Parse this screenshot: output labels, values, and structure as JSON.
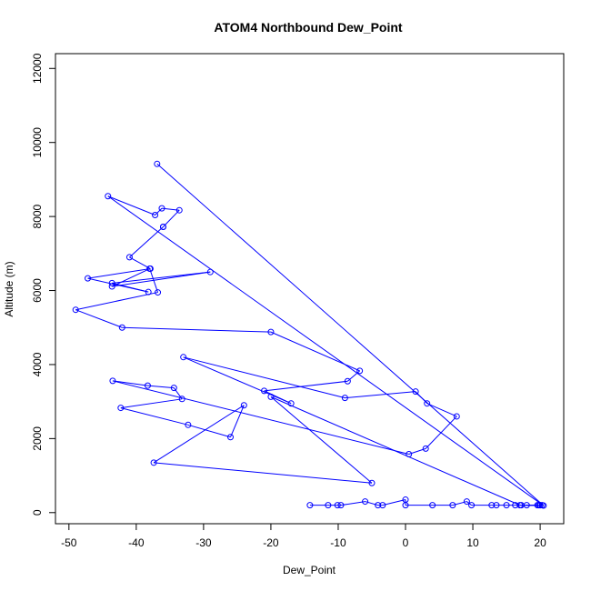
{
  "chart_data": {
    "type": "line",
    "title": "ATOM4 Northbound Dew_Point",
    "xlabel": "Dew_Point",
    "ylabel": "Altitude (m)",
    "xlim": [
      -52,
      23.5
    ],
    "ylim": [
      -300,
      12400
    ],
    "xticks": [
      -50,
      -40,
      -30,
      -20,
      -10,
      0,
      10,
      20
    ],
    "yticks": [
      0,
      2000,
      4000,
      6000,
      8000,
      10000,
      12000
    ],
    "color": "#0000FF",
    "grid": false,
    "legend": "none",
    "x": [
      -36.9,
      20.5,
      -44.2,
      -37.2,
      -36.2,
      -33.6,
      -36.0,
      -36.0,
      -41.0,
      -37.9,
      -47.2,
      -38.2,
      -43.6,
      -29.0,
      -43.6,
      -38.0,
      -36.8,
      -49.0,
      -42.1,
      -20.0,
      -6.8,
      -8.6,
      -21.0,
      -17.0,
      -33.0,
      -9.0,
      1.5,
      3.2,
      7.6,
      3.0,
      0.5,
      -43.5,
      -38.3,
      -34.4,
      -33.2,
      -42.3,
      -32.3,
      -26.0,
      -24.0,
      -37.4,
      -5.0,
      -20.0,
      17.0,
      20.0,
      18.0,
      19.8,
      20.3,
      17.2,
      19.6,
      20.0,
      16.3,
      15.0,
      13.5,
      12.8,
      9.8,
      9.1,
      7.0,
      4.0,
      0.0,
      0.0,
      -3.4,
      -4.1,
      -6.0,
      -9.6,
      -10.1,
      -11.5,
      -14.2
    ],
    "y": [
      9420,
      190,
      8550,
      8040,
      8220,
      8170,
      7720,
      7720,
      6900,
      6590,
      6330,
      5960,
      6200,
      6500,
      6110,
      6590,
      5950,
      5480,
      5000,
      4880,
      3830,
      3550,
      3290,
      2950,
      4200,
      3100,
      3270,
      2950,
      2600,
      1730,
      1580,
      3560,
      3430,
      3370,
      3070,
      2830,
      2370,
      2040,
      2900,
      1350,
      800,
      3130,
      200,
      200,
      200,
      200,
      200,
      200,
      200,
      200,
      200,
      200,
      200,
      200,
      200,
      300,
      200,
      200,
      200,
      350,
      200,
      200,
      300,
      200,
      200,
      200,
      200
    ]
  }
}
